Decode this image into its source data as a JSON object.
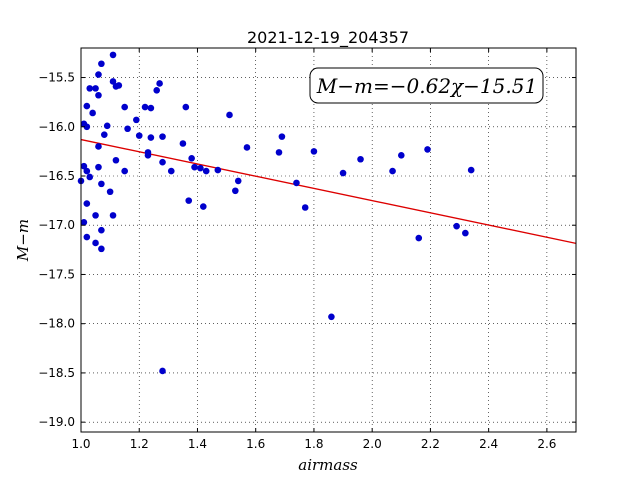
{
  "chart_data": {
    "type": "scatter",
    "title": "2021-12-19_204357",
    "xlabel": "airmass",
    "ylabel": "M−m",
    "annotation": "M−m=−0.62χ−15.51",
    "xlim": [
      1.0,
      2.7
    ],
    "ylim": [
      -19.1,
      -15.2
    ],
    "xticks": [
      1.0,
      1.2,
      1.4,
      1.6,
      1.8,
      2.0,
      2.2,
      2.4,
      2.6
    ],
    "xtick_labels": [
      "1.0",
      "1.2",
      "1.4",
      "1.6",
      "1.8",
      "2.0",
      "2.2",
      "2.4",
      "2.6"
    ],
    "yticks": [
      -15.5,
      -16.0,
      -16.5,
      -17.0,
      -17.5,
      -18.0,
      -18.5,
      -19.0
    ],
    "ytick_labels": [
      "−15.5",
      "−16.0",
      "−16.5",
      "−17.0",
      "−17.5",
      "−18.0",
      "−18.5",
      "−19.0"
    ],
    "grid": true,
    "marker_color": "#0000cc",
    "fit_color": "#dd0000",
    "fit": {
      "slope": -0.62,
      "intercept": -15.51
    },
    "points": [
      {
        "x": 1.0,
        "y": -16.55
      },
      {
        "x": 1.01,
        "y": -16.97
      },
      {
        "x": 1.01,
        "y": -16.4
      },
      {
        "x": 1.01,
        "y": -15.97
      },
      {
        "x": 1.02,
        "y": -16.0
      },
      {
        "x": 1.02,
        "y": -16.45
      },
      {
        "x": 1.02,
        "y": -16.78
      },
      {
        "x": 1.02,
        "y": -17.12
      },
      {
        "x": 1.02,
        "y": -15.79
      },
      {
        "x": 1.03,
        "y": -16.51
      },
      {
        "x": 1.03,
        "y": -15.61
      },
      {
        "x": 1.04,
        "y": -15.86
      },
      {
        "x": 1.05,
        "y": -16.9
      },
      {
        "x": 1.05,
        "y": -17.18
      },
      {
        "x": 1.05,
        "y": -15.61
      },
      {
        "x": 1.06,
        "y": -15.68
      },
      {
        "x": 1.06,
        "y": -15.47
      },
      {
        "x": 1.06,
        "y": -16.41
      },
      {
        "x": 1.06,
        "y": -16.2
      },
      {
        "x": 1.07,
        "y": -15.36
      },
      {
        "x": 1.07,
        "y": -16.58
      },
      {
        "x": 1.07,
        "y": -17.05
      },
      {
        "x": 1.07,
        "y": -17.24
      },
      {
        "x": 1.08,
        "y": -16.08
      },
      {
        "x": 1.09,
        "y": -15.99
      },
      {
        "x": 1.1,
        "y": -16.66
      },
      {
        "x": 1.11,
        "y": -16.9
      },
      {
        "x": 1.11,
        "y": -15.27
      },
      {
        "x": 1.11,
        "y": -15.54
      },
      {
        "x": 1.12,
        "y": -15.59
      },
      {
        "x": 1.12,
        "y": -16.34
      },
      {
        "x": 1.13,
        "y": -15.58
      },
      {
        "x": 1.15,
        "y": -16.45
      },
      {
        "x": 1.15,
        "y": -15.8
      },
      {
        "x": 1.16,
        "y": -16.02
      },
      {
        "x": 1.19,
        "y": -15.93
      },
      {
        "x": 1.2,
        "y": -16.09
      },
      {
        "x": 1.22,
        "y": -15.8
      },
      {
        "x": 1.23,
        "y": -16.26
      },
      {
        "x": 1.23,
        "y": -16.29
      },
      {
        "x": 1.24,
        "y": -16.11
      },
      {
        "x": 1.24,
        "y": -15.81
      },
      {
        "x": 1.26,
        "y": -15.63
      },
      {
        "x": 1.27,
        "y": -15.56
      },
      {
        "x": 1.28,
        "y": -16.1
      },
      {
        "x": 1.28,
        "y": -16.36
      },
      {
        "x": 1.28,
        "y": -18.48
      },
      {
        "x": 1.31,
        "y": -16.45
      },
      {
        "x": 1.35,
        "y": -16.17
      },
      {
        "x": 1.36,
        "y": -15.8
      },
      {
        "x": 1.37,
        "y": -16.75
      },
      {
        "x": 1.38,
        "y": -16.32
      },
      {
        "x": 1.39,
        "y": -16.41
      },
      {
        "x": 1.41,
        "y": -16.42
      },
      {
        "x": 1.42,
        "y": -16.81
      },
      {
        "x": 1.43,
        "y": -16.45
      },
      {
        "x": 1.47,
        "y": -16.44
      },
      {
        "x": 1.51,
        "y": -15.88
      },
      {
        "x": 1.53,
        "y": -16.65
      },
      {
        "x": 1.54,
        "y": -16.55
      },
      {
        "x": 1.57,
        "y": -16.21
      },
      {
        "x": 1.68,
        "y": -16.26
      },
      {
        "x": 1.69,
        "y": -16.1
      },
      {
        "x": 1.74,
        "y": -16.57
      },
      {
        "x": 1.77,
        "y": -16.82
      },
      {
        "x": 1.8,
        "y": -16.25
      },
      {
        "x": 1.86,
        "y": -17.93
      },
      {
        "x": 1.9,
        "y": -16.47
      },
      {
        "x": 1.96,
        "y": -16.33
      },
      {
        "x": 2.07,
        "y": -16.45
      },
      {
        "x": 2.1,
        "y": -16.29
      },
      {
        "x": 2.16,
        "y": -17.13
      },
      {
        "x": 2.19,
        "y": -16.23
      },
      {
        "x": 2.29,
        "y": -17.01
      },
      {
        "x": 2.32,
        "y": -17.08
      },
      {
        "x": 2.34,
        "y": -16.44
      }
    ]
  }
}
